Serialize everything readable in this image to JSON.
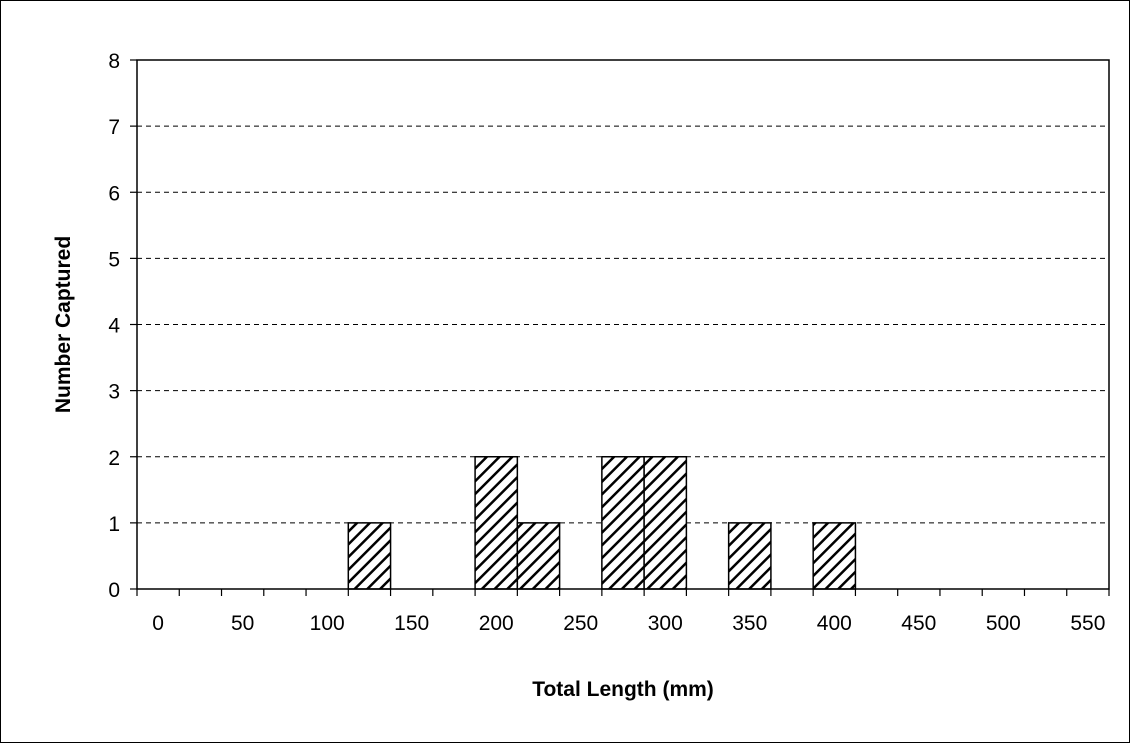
{
  "chart_data": {
    "type": "bar",
    "title": "",
    "xlabel": "Total Length (mm)",
    "ylabel": "Number Captured",
    "bins": [
      "0",
      "25",
      "50",
      "75",
      "100",
      "125",
      "150",
      "175",
      "200",
      "225",
      "250",
      "275",
      "300",
      "325",
      "350",
      "375",
      "400",
      "425",
      "450",
      "475",
      "500",
      "525",
      "550"
    ],
    "values": [
      0,
      0,
      0,
      0,
      0,
      1,
      0,
      0,
      2,
      1,
      0,
      2,
      2,
      0,
      1,
      0,
      1,
      0,
      0,
      0,
      0,
      0,
      0
    ],
    "x_tick_labels": [
      "0",
      "50",
      "100",
      "150",
      "200",
      "250",
      "300",
      "350",
      "400",
      "450",
      "500",
      "550"
    ],
    "y_tick_labels": [
      "0",
      "1",
      "2",
      "3",
      "4",
      "5",
      "6",
      "7",
      "8"
    ],
    "ylim": [
      0,
      8
    ],
    "grid": "horizontal dashed",
    "bar_fill": "diagonal hatch",
    "colors": {
      "bar_stroke": "#000000",
      "hatch": "#000000",
      "background": "#ffffff",
      "grid": "#000000"
    }
  }
}
